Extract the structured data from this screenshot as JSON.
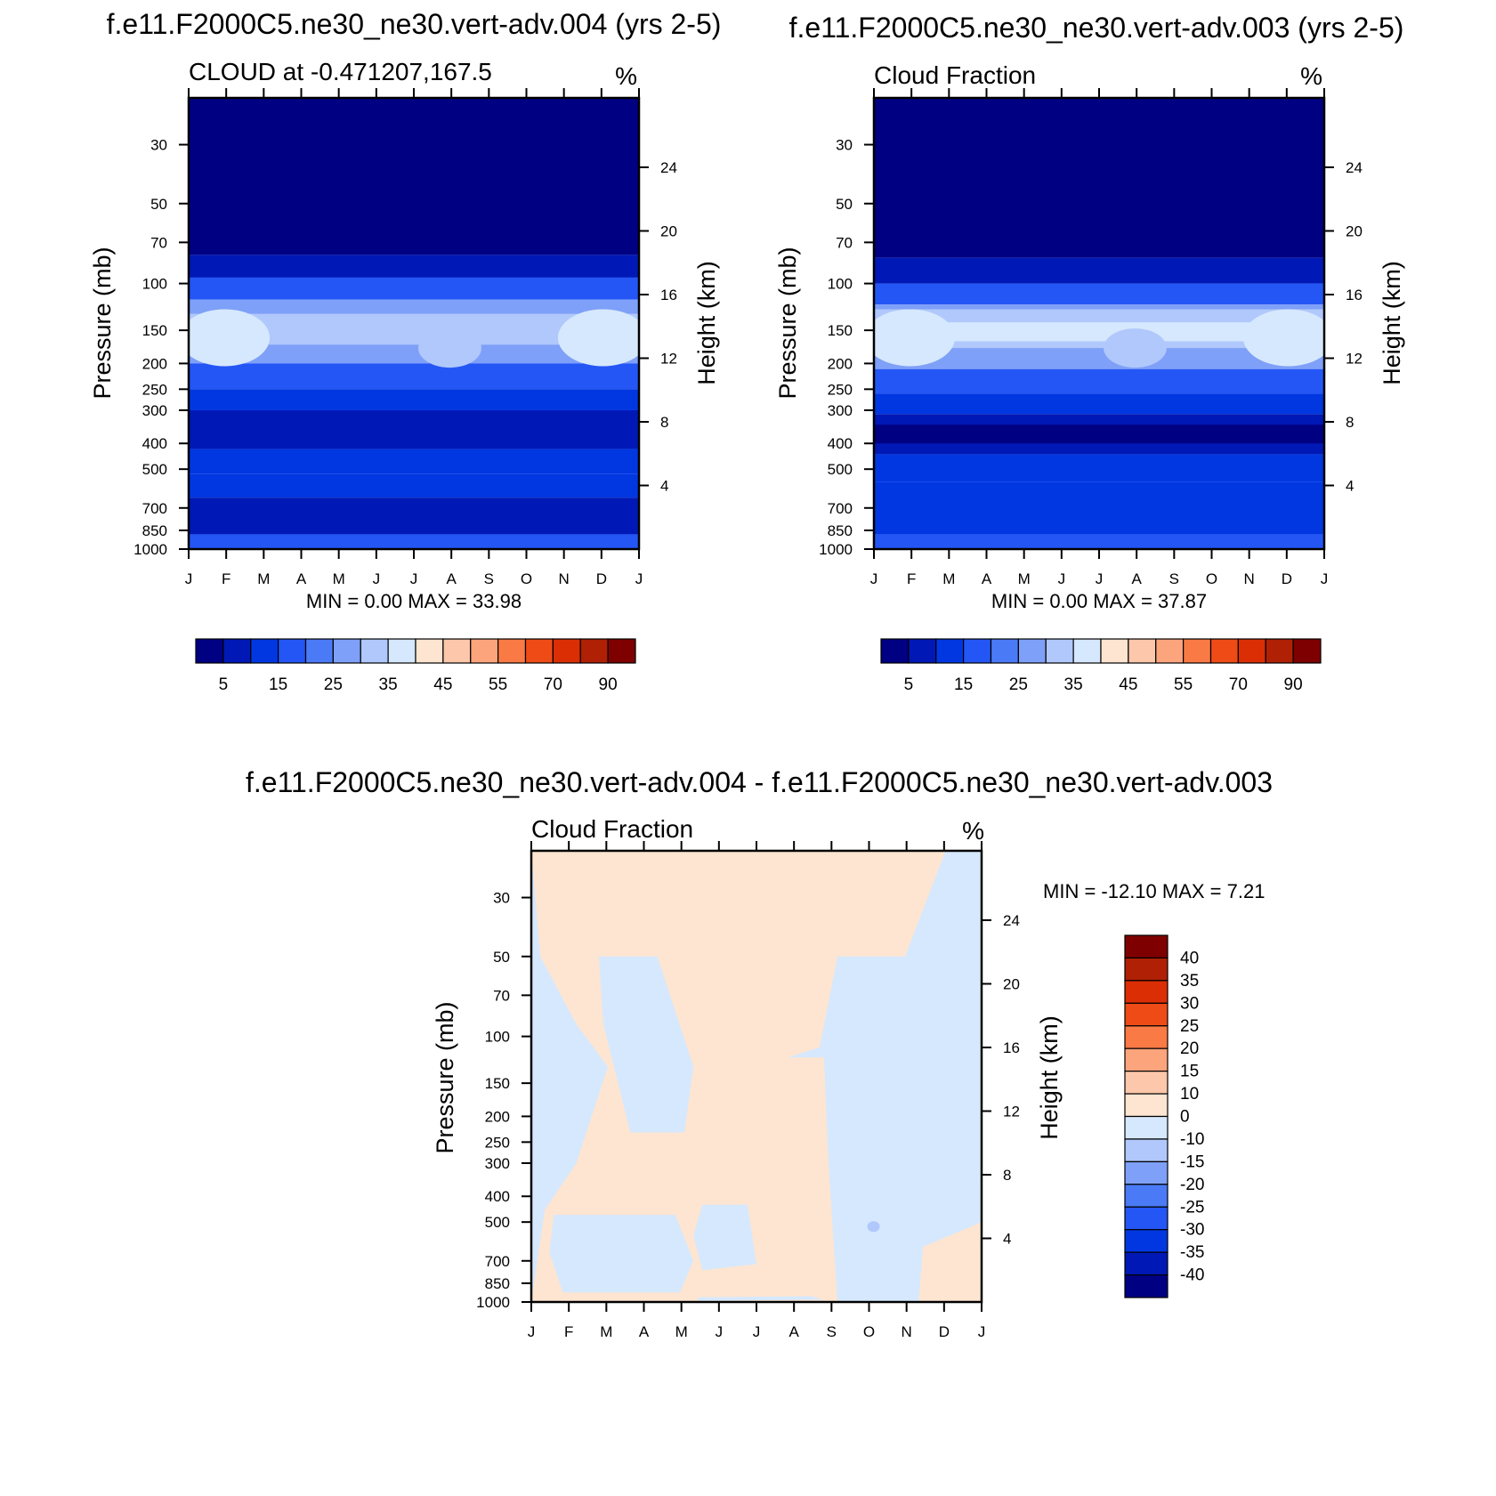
{
  "chart_data": [
    {
      "type": "heatmap",
      "plot_kind": "filled contour (month vs pressure)",
      "title": "f.e11.F2000C5.ne30_ne30.vert-adv.004 (yrs 2-5)",
      "left_string": "CLOUD at -0.471207,167.5",
      "right_string": "%",
      "x_ticks": [
        "J",
        "F",
        "M",
        "A",
        "M",
        "J",
        "J",
        "A",
        "S",
        "O",
        "N",
        "D",
        "J"
      ],
      "ylabel": "Pressure (mb)",
      "y_ticks": [
        30,
        50,
        70,
        100,
        150,
        200,
        250,
        300,
        400,
        500,
        700,
        850,
        1000
      ],
      "y_log_scale": true,
      "ylim": [
        20,
        1000
      ],
      "ylabel_right": "Height (km)",
      "y_ticks_right": [
        4,
        8,
        12,
        16,
        20,
        24
      ],
      "min_max_text": "MIN =    0.00 MAX =  33.98",
      "min": 0.0,
      "max": 33.98,
      "colorbar": {
        "orientation": "horizontal",
        "labels": [
          "5",
          "15",
          "25",
          "35",
          "45",
          "55",
          "70",
          "90"
        ],
        "colors": [
          "#000082",
          "#0019b6",
          "#0037e1",
          "#2456f5",
          "#4a7af5",
          "#7fa0f8",
          "#b0c8fb",
          "#d6e8fd",
          "#fde5d1",
          "#fcc7aa",
          "#fca47c",
          "#f97a45",
          "#ef4b17",
          "#db2e05",
          "#b02004",
          "#7f0000"
        ]
      },
      "observed_pattern": "Below ~5% above 70 mb; maximum near 25-35% between 100 and 200 mb in Feb-Mar and Nov-Dec, and secondary maximum near Jul-Aug; lower values 5-15% between 300 and 1000 mb."
    },
    {
      "type": "heatmap",
      "plot_kind": "filled contour (month vs pressure)",
      "title": "f.e11.F2000C5.ne30_ne30.vert-adv.003 (yrs 2-5)",
      "left_string": "Cloud Fraction",
      "right_string": "%",
      "x_ticks": [
        "J",
        "F",
        "M",
        "A",
        "M",
        "J",
        "J",
        "A",
        "S",
        "O",
        "N",
        "D",
        "J"
      ],
      "ylabel": "Pressure (mb)",
      "y_ticks": [
        30,
        50,
        70,
        100,
        150,
        200,
        250,
        300,
        400,
        500,
        700,
        850,
        1000
      ],
      "y_log_scale": true,
      "ylim": [
        20,
        1000
      ],
      "ylabel_right": "Height (km)",
      "y_ticks_right": [
        4,
        8,
        12,
        16,
        20,
        24
      ],
      "min_max_text": "MIN =    0.00 MAX =  37.87",
      "min": 0.0,
      "max": 37.87,
      "colorbar": {
        "orientation": "horizontal",
        "labels": [
          "5",
          "15",
          "25",
          "35",
          "45",
          "55",
          "70",
          "90"
        ],
        "colors": [
          "#000082",
          "#0019b6",
          "#0037e1",
          "#2456f5",
          "#4a7af5",
          "#7fa0f8",
          "#b0c8fb",
          "#d6e8fd",
          "#fde5d1",
          "#fcc7aa",
          "#fca47c",
          "#f97a45",
          "#ef4b17",
          "#db2e05",
          "#b02004",
          "#7f0000"
        ]
      },
      "observed_pattern": "Below ~5% above 70 mb; maximum 30-38% between 100 and 200 mb in Jan-Feb and Nov-Dec; minimum 0-5% near 300-400 mb in Feb and Apr-May."
    },
    {
      "type": "heatmap",
      "plot_kind": "filled contour difference (month vs pressure)",
      "title": "f.e11.F2000C5.ne30_ne30.vert-adv.004 - f.e11.F2000C5.ne30_ne30.vert-adv.003",
      "left_string": "Cloud Fraction",
      "right_string": "%",
      "x_ticks": [
        "J",
        "F",
        "M",
        "A",
        "M",
        "J",
        "J",
        "A",
        "S",
        "O",
        "N",
        "D",
        "J"
      ],
      "ylabel": "Pressure (mb)",
      "y_ticks": [
        30,
        50,
        70,
        100,
        150,
        200,
        250,
        300,
        400,
        500,
        700,
        850,
        1000
      ],
      "y_log_scale": true,
      "ylim": [
        20,
        1000
      ],
      "ylabel_right": "Height (km)",
      "y_ticks_right": [
        4,
        8,
        12,
        16,
        20,
        24
      ],
      "min_max_text": "MIN = -12.10 MAX =   7.21",
      "min": -12.1,
      "max": 7.21,
      "colorbar": {
        "orientation": "vertical",
        "labels": [
          "40",
          "35",
          "30",
          "25",
          "20",
          "15",
          "10",
          "0",
          "-10",
          "-15",
          "-20",
          "-25",
          "-30",
          "-35",
          "-40"
        ],
        "colors_top_to_bottom": [
          "#7f0000",
          "#b02004",
          "#db2e05",
          "#ef4b17",
          "#f97a45",
          "#fca47c",
          "#fcc7aa",
          "#fde5d1",
          "#d6e8fd",
          "#b0c8fb",
          "#7fa0f8",
          "#4a7af5",
          "#2456f5",
          "#0037e1",
          "#0019b6",
          "#000082"
        ]
      },
      "observed_pattern": "Mostly 0 to 10 (light peach) across Mar-Sep; 0 to -10 (light blue) in Jan-Feb at 30-1000 mb, in Mar-May at 50-200 mb and 500-850 mb, and in Sep-Dec below 100 mb; small -10 to -15 patch near 500 mb in Oct."
    }
  ]
}
